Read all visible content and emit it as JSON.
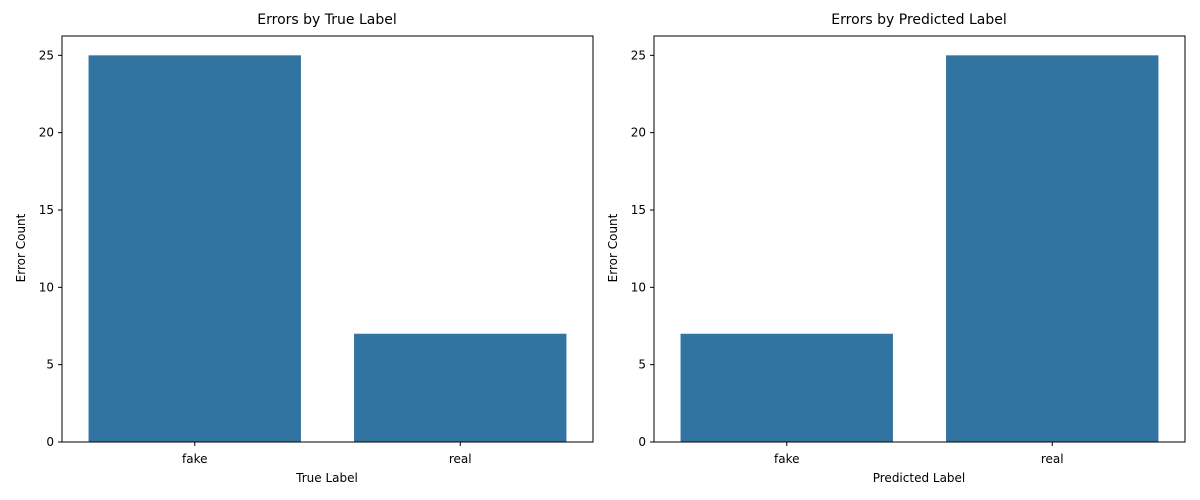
{
  "chart_data": [
    {
      "type": "bar",
      "title": "Errors by True Label",
      "xlabel": "True Label",
      "ylabel": "Error Count",
      "categories": [
        "fake",
        "real"
      ],
      "values": [
        25,
        7
      ],
      "ylim": [
        0,
        26.25
      ],
      "yticks": [
        "0",
        "5",
        "10",
        "15",
        "20",
        "25"
      ],
      "grid": false,
      "bar_color": "#3274a1"
    },
    {
      "type": "bar",
      "title": "Errors by Predicted Label",
      "xlabel": "Predicted Label",
      "ylabel": "Error Count",
      "categories": [
        "fake",
        "real"
      ],
      "values": [
        7,
        25
      ],
      "ylim": [
        0,
        26.25
      ],
      "yticks": [
        "0",
        "5",
        "10",
        "15",
        "20",
        "25"
      ],
      "grid": false,
      "bar_color": "#3274a1"
    }
  ]
}
